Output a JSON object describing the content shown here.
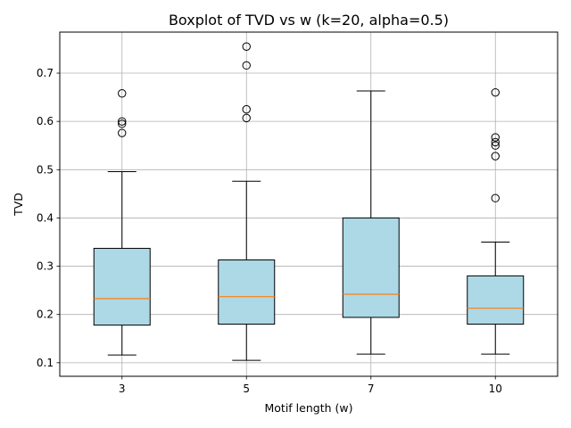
{
  "chart_data": {
    "type": "box",
    "title": "Boxplot of TVD vs w (k=20, alpha=0.5)",
    "xlabel": "Motif length (w)",
    "ylabel": "TVD",
    "categories": [
      "3",
      "5",
      "7",
      "10"
    ],
    "ylim": [
      0.072,
      0.785
    ],
    "yticks": [
      0.1,
      0.2,
      0.3,
      0.4,
      0.5,
      0.6,
      0.7
    ],
    "ytick_labels": [
      "0.1",
      "0.2",
      "0.3",
      "0.4",
      "0.5",
      "0.6",
      "0.7"
    ],
    "grid": true,
    "box_color": "#add8e6",
    "median_color": "#ff7f0e",
    "boxes": [
      {
        "category": "3",
        "whisker_low": 0.116,
        "q1": 0.178,
        "median": 0.233,
        "q3": 0.337,
        "whisker_high": 0.496,
        "outliers": [
          0.576,
          0.595,
          0.6,
          0.658
        ]
      },
      {
        "category": "5",
        "whisker_low": 0.105,
        "q1": 0.18,
        "median": 0.237,
        "q3": 0.313,
        "whisker_high": 0.476,
        "outliers": [
          0.607,
          0.625,
          0.716,
          0.755
        ]
      },
      {
        "category": "7",
        "whisker_low": 0.118,
        "q1": 0.194,
        "median": 0.242,
        "q3": 0.4,
        "whisker_high": 0.663,
        "outliers": []
      },
      {
        "category": "10",
        "whisker_low": 0.118,
        "q1": 0.18,
        "median": 0.213,
        "q3": 0.28,
        "whisker_high": 0.35,
        "outliers": [
          0.441,
          0.528,
          0.55,
          0.557,
          0.567,
          0.66
        ]
      }
    ]
  }
}
